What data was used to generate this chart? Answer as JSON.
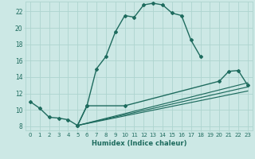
{
  "xlabel": "Humidex (Indice chaleur)",
  "bg_color": "#cce8e5",
  "line_color": "#1e6b5e",
  "grid_color": "#aed4cf",
  "xlim": [
    -0.5,
    23.5
  ],
  "ylim": [
    7.5,
    23.2
  ],
  "xticks": [
    0,
    1,
    2,
    3,
    4,
    5,
    6,
    7,
    8,
    9,
    10,
    11,
    12,
    13,
    14,
    15,
    16,
    17,
    18,
    19,
    20,
    21,
    22,
    23
  ],
  "yticks": [
    8,
    10,
    12,
    14,
    16,
    18,
    20,
    22
  ],
  "series1_x": [
    0,
    1,
    2,
    3,
    4,
    5,
    6,
    7,
    8,
    9,
    10,
    11,
    12,
    13,
    14,
    15,
    16,
    17,
    18
  ],
  "series1_y": [
    11.0,
    10.2,
    9.1,
    9.0,
    8.8,
    8.1,
    10.5,
    15.0,
    16.5,
    19.5,
    21.5,
    21.3,
    22.8,
    23.0,
    22.8,
    21.8,
    21.5,
    18.5,
    16.5
  ],
  "series2_x": [
    5,
    6,
    10,
    20,
    21,
    22,
    23
  ],
  "series2_y": [
    8.1,
    10.5,
    10.5,
    13.5,
    14.7,
    14.8,
    13.0
  ],
  "line3_x": [
    5,
    23
  ],
  "line3_y": [
    8.1,
    13.3
  ],
  "line4_x": [
    5,
    23
  ],
  "line4_y": [
    8.1,
    12.8
  ],
  "line5_x": [
    5,
    23
  ],
  "line5_y": [
    8.1,
    12.3
  ],
  "marker": "D",
  "markersize": 2.0,
  "linewidth": 1.0,
  "xlabel_fontsize": 6.0,
  "tick_fontsize": 5.0
}
